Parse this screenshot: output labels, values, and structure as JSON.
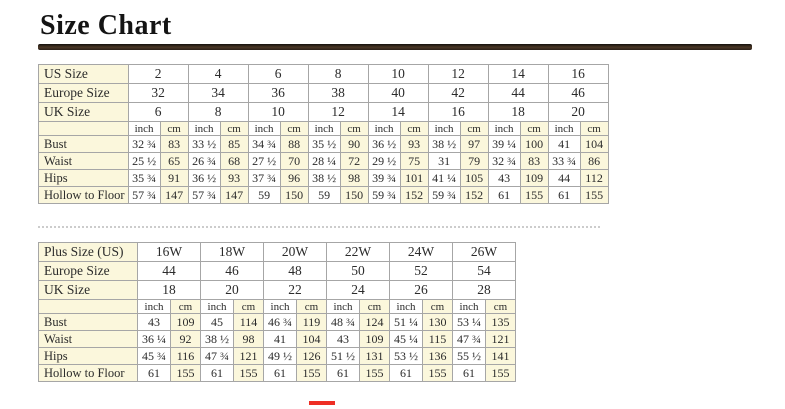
{
  "title": "Size Chart",
  "colors": {
    "cream": "#FBF7DC",
    "border": "#A6A6A6",
    "rule": "#362A1E",
    "red_mark": "#EE2E24",
    "text": "#2B2B2B"
  },
  "chart_data": [
    {
      "type": "table",
      "name": "regular-sizes",
      "size_rows": [
        {
          "label": "US Size",
          "values": [
            "2",
            "4",
            "6",
            "8",
            "10",
            "12",
            "14",
            "16"
          ]
        },
        {
          "label": "Europe Size",
          "values": [
            "32",
            "34",
            "36",
            "38",
            "40",
            "42",
            "44",
            "46"
          ]
        },
        {
          "label": "UK Size",
          "values": [
            "6",
            "8",
            "10",
            "12",
            "14",
            "16",
            "18",
            "20"
          ]
        }
      ],
      "unit_labels": [
        "inch",
        "cm"
      ],
      "measure_rows": [
        {
          "label": "Bust",
          "values": [
            [
              "32 ¾",
              "83"
            ],
            [
              "33 ½",
              "85"
            ],
            [
              "34 ¾",
              "88"
            ],
            [
              "35 ½",
              "90"
            ],
            [
              "36 ½",
              "93"
            ],
            [
              "38 ½",
              "97"
            ],
            [
              "39 ¼",
              "100"
            ],
            [
              "41",
              "104"
            ]
          ]
        },
        {
          "label": "Waist",
          "values": [
            [
              "25 ½",
              "65"
            ],
            [
              "26 ¾",
              "68"
            ],
            [
              "27 ½",
              "70"
            ],
            [
              "28 ¼",
              "72"
            ],
            [
              "29 ½",
              "75"
            ],
            [
              "31",
              "79"
            ],
            [
              "32 ¾",
              "83"
            ],
            [
              "33 ¾",
              "86"
            ]
          ]
        },
        {
          "label": "Hips",
          "values": [
            [
              "35 ¾",
              "91"
            ],
            [
              "36 ½",
              "93"
            ],
            [
              "37 ¾",
              "96"
            ],
            [
              "38 ½",
              "98"
            ],
            [
              "39 ¾",
              "101"
            ],
            [
              "41 ¼",
              "105"
            ],
            [
              "43",
              "109"
            ],
            [
              "44",
              "112"
            ]
          ]
        },
        {
          "label": "Hollow to Floor",
          "values": [
            [
              "57 ¾",
              "147"
            ],
            [
              "57 ¾",
              "147"
            ],
            [
              "59",
              "150"
            ],
            [
              "59",
              "150"
            ],
            [
              "59 ¾",
              "152"
            ],
            [
              "59 ¾",
              "152"
            ],
            [
              "61",
              "155"
            ],
            [
              "61",
              "155"
            ]
          ]
        }
      ]
    },
    {
      "type": "table",
      "name": "plus-sizes",
      "size_rows": [
        {
          "label": "Plus Size (US)",
          "values": [
            "16W",
            "18W",
            "20W",
            "22W",
            "24W",
            "26W"
          ]
        },
        {
          "label": "Europe Size",
          "values": [
            "44",
            "46",
            "48",
            "50",
            "52",
            "54"
          ]
        },
        {
          "label": "UK Size",
          "values": [
            "18",
            "20",
            "22",
            "24",
            "26",
            "28"
          ]
        }
      ],
      "unit_labels": [
        "inch",
        "cm"
      ],
      "measure_rows": [
        {
          "label": "Bust",
          "values": [
            [
              "43",
              "109"
            ],
            [
              "45",
              "114"
            ],
            [
              "46 ¾",
              "119"
            ],
            [
              "48 ¾",
              "124"
            ],
            [
              "51 ¼",
              "130"
            ],
            [
              "53 ¼",
              "135"
            ]
          ]
        },
        {
          "label": "Waist",
          "values": [
            [
              "36 ¼",
              "92"
            ],
            [
              "38 ½",
              "98"
            ],
            [
              "41",
              "104"
            ],
            [
              "43",
              "109"
            ],
            [
              "45 ¼",
              "115"
            ],
            [
              "47 ¾",
              "121"
            ]
          ]
        },
        {
          "label": "Hips",
          "values": [
            [
              "45 ¾",
              "116"
            ],
            [
              "47 ¾",
              "121"
            ],
            [
              "49 ½",
              "126"
            ],
            [
              "51 ½",
              "131"
            ],
            [
              "53 ½",
              "136"
            ],
            [
              "55 ½",
              "141"
            ]
          ]
        },
        {
          "label": "Hollow to Floor",
          "values": [
            [
              "61",
              "155"
            ],
            [
              "61",
              "155"
            ],
            [
              "61",
              "155"
            ],
            [
              "61",
              "155"
            ],
            [
              "61",
              "155"
            ],
            [
              "61",
              "155"
            ]
          ]
        }
      ]
    }
  ]
}
